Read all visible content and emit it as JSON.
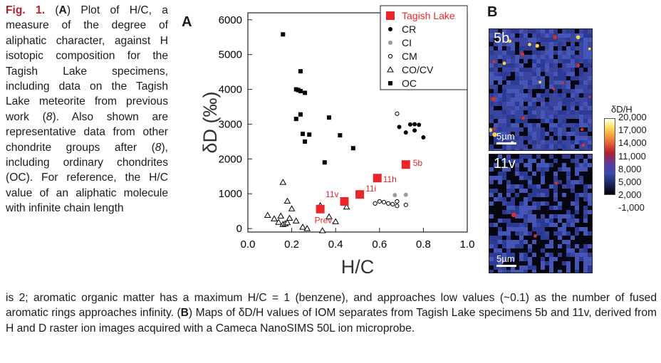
{
  "caption": {
    "fig_label": "Fig. 1.",
    "segments": [
      {
        "t": "(",
        "b": false
      },
      {
        "t": "A",
        "b": true
      },
      {
        "t": ") Plot of H/C, a measure of the degree of aliphatic character, against H isotopic composition for the Tagish Lake specimens, including data on the Tagish Lake meteorite from previous work (",
        "b": false
      },
      {
        "t": "8",
        "b": false,
        "i": true
      },
      {
        "t": "). Also shown are representative data from other chondrite groups after (",
        "b": false
      },
      {
        "t": "8",
        "b": false,
        "i": true
      },
      {
        "t": "), including ordinary chondrites (OC). For reference, the H/C value of an aliphatic molecule with infinite chain length",
        "b": false
      }
    ],
    "bottom_segments": [
      {
        "t": "is 2; aromatic organic matter has a maximum H/C = 1 (benzene), and approaches low values (~0.1) as the number of fused aromatic rings approaches infinity. (",
        "b": false
      },
      {
        "t": "B",
        "b": true
      },
      {
        "t": ") Maps of δD/H values of IOM separates from Tagish Lake specimens 5b and 11v, derived from H and D raster ion images acquired with a Cameca NanoSIMS 50L ion microprobe.",
        "b": false
      }
    ]
  },
  "panels": {
    "a": "A",
    "b": "B"
  },
  "colors": {
    "tagish": "#e8262c",
    "cr": "#000000",
    "ci": "#9a9a9a",
    "fig_label": "#b8202a"
  },
  "chart_data": {
    "type": "scatter",
    "xlabel": "H/C",
    "ylabel": "δD (‰)",
    "xlim": [
      0.0,
      1.0
    ],
    "ylim": [
      -100,
      6200
    ],
    "xticks": [
      "0.0",
      "0.2",
      "0.4",
      "0.6",
      "0.8",
      "1.0"
    ],
    "yticks": [
      "0",
      "1000",
      "2000",
      "3000",
      "4000",
      "5000",
      "6000"
    ],
    "legend_position": "top-right",
    "series": [
      {
        "name": "Tagish Lake",
        "marker": "filled-square-large",
        "color": "#e8262c",
        "points": [
          [
            0.33,
            560,
            "Prev."
          ],
          [
            0.44,
            780,
            "11v"
          ],
          [
            0.51,
            980,
            "11i"
          ],
          [
            0.59,
            1450,
            "11h"
          ],
          [
            0.72,
            1840,
            "5b"
          ]
        ]
      },
      {
        "name": "CR",
        "marker": "filled-circle",
        "color": "#000000",
        "points": [
          [
            0.69,
            2920
          ],
          [
            0.74,
            2990
          ],
          [
            0.76,
            3000
          ],
          [
            0.78,
            2980
          ],
          [
            0.76,
            2820
          ],
          [
            0.8,
            2620
          ],
          [
            0.72,
            2760
          ]
        ]
      },
      {
        "name": "CI",
        "marker": "filled-circle",
        "color": "#9a9a9a",
        "points": [
          [
            0.67,
            960
          ],
          [
            0.72,
            970
          ]
        ]
      },
      {
        "name": "CM",
        "marker": "open-circle",
        "color": "#000000",
        "points": [
          [
            0.68,
            3300
          ],
          [
            0.58,
            720
          ],
          [
            0.6,
            780
          ],
          [
            0.62,
            760
          ],
          [
            0.64,
            720
          ],
          [
            0.66,
            700
          ],
          [
            0.68,
            650
          ],
          [
            0.68,
            780
          ],
          [
            0.72,
            680
          ]
        ]
      },
      {
        "name": "CO/CV",
        "marker": "open-triangle",
        "color": "#000000",
        "points": [
          [
            0.09,
            380
          ],
          [
            0.12,
            280
          ],
          [
            0.14,
            180
          ],
          [
            0.15,
            360
          ],
          [
            0.16,
            120
          ],
          [
            0.17,
            140
          ],
          [
            0.18,
            170
          ],
          [
            0.19,
            300
          ],
          [
            0.16,
            1330
          ],
          [
            0.18,
            790
          ],
          [
            0.2,
            570
          ],
          [
            0.22,
            220
          ],
          [
            0.25,
            40
          ],
          [
            0.27,
            0
          ],
          [
            0.33,
            660
          ],
          [
            0.34,
            -60
          ],
          [
            0.37,
            340
          ],
          [
            0.4,
            200
          ],
          [
            0.45,
            620
          ]
        ]
      },
      {
        "name": "OC",
        "marker": "filled-square",
        "color": "#000000",
        "points": [
          [
            0.16,
            5580
          ],
          [
            0.24,
            4520
          ],
          [
            0.22,
            4000
          ],
          [
            0.23,
            3980
          ],
          [
            0.24,
            3950
          ],
          [
            0.26,
            3900
          ],
          [
            0.24,
            3280
          ],
          [
            0.22,
            3150
          ],
          [
            0.25,
            2720
          ],
          [
            0.28,
            2700
          ],
          [
            0.26,
            2500
          ],
          [
            0.37,
            3190
          ],
          [
            0.42,
            2680
          ],
          [
            0.48,
            2310
          ],
          [
            0.35,
            1900
          ]
        ]
      }
    ]
  },
  "maps": [
    {
      "label": "5b",
      "scale": "5µm"
    },
    {
      "label": "11v",
      "scale": "5µm"
    }
  ],
  "colorbar": {
    "title": "δD/H",
    "ticks": [
      "20,000",
      "17,000",
      "14,000",
      "11,000",
      "8,000",
      "5,000",
      "2,000",
      "-1,000"
    ]
  }
}
